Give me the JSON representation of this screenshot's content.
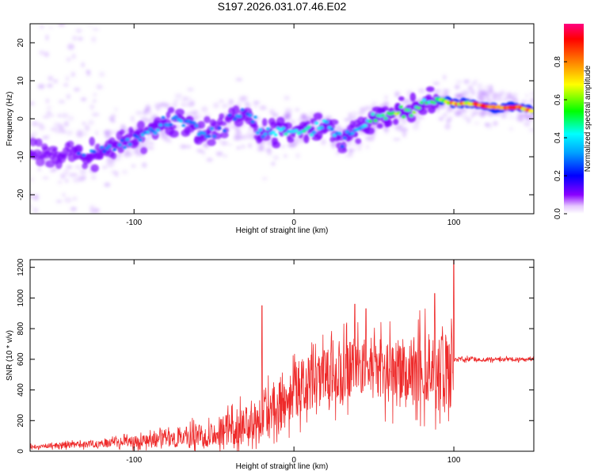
{
  "figure_title": "S197.2026.031.07.46.E02",
  "colors": {
    "snr_line": "#ee2a2a",
    "axis": "#000000",
    "background": "#ffffff"
  },
  "chart_data": [
    {
      "type": "heatmap",
      "title": "S197.2026.031.07.46.E02",
      "xlabel": "Height of straight line (km)",
      "ylabel": "Frequency (Hz)",
      "xlim": [
        -165,
        150
      ],
      "ylim": [
        -25,
        25
      ],
      "x_ticks": [
        -100,
        0,
        100
      ],
      "y_ticks": [
        -20,
        -10,
        0,
        10,
        20
      ],
      "colorscale": "rainbow",
      "colorbar": {
        "label": "Normalized spectral amplitude",
        "range": [
          0,
          1
        ],
        "ticks": [
          "0.0",
          "0.2",
          "0.4",
          "0.6",
          "0.8"
        ]
      },
      "ridge": {
        "description": "dominant-frequency track",
        "points": [
          {
            "x": -160,
            "f": -8,
            "a": 0.15
          },
          {
            "x": -150,
            "f": -10,
            "a": 0.2
          },
          {
            "x": -140,
            "f": -9,
            "a": 0.2
          },
          {
            "x": -130,
            "f": -10,
            "a": 0.3
          },
          {
            "x": -120,
            "f": -8,
            "a": 0.3
          },
          {
            "x": -110,
            "f": -7,
            "a": 0.3
          },
          {
            "x": -100,
            "f": -6,
            "a": 0.3
          },
          {
            "x": -90,
            "f": -3,
            "a": 0.35
          },
          {
            "x": -80,
            "f": -1,
            "a": 0.35
          },
          {
            "x": -70,
            "f": 0,
            "a": 0.35
          },
          {
            "x": -60,
            "f": -3,
            "a": 0.3
          },
          {
            "x": -50,
            "f": -4,
            "a": 0.3
          },
          {
            "x": -40,
            "f": 0,
            "a": 0.3
          },
          {
            "x": -30,
            "f": 2,
            "a": 0.3
          },
          {
            "x": -20,
            "f": -4,
            "a": 0.35
          },
          {
            "x": -10,
            "f": -3,
            "a": 0.45
          },
          {
            "x": 0,
            "f": -4,
            "a": 0.45
          },
          {
            "x": 10,
            "f": -3,
            "a": 0.45
          },
          {
            "x": 20,
            "f": -1,
            "a": 0.4
          },
          {
            "x": 30,
            "f": -6,
            "a": 0.35
          },
          {
            "x": 40,
            "f": -3,
            "a": 0.35
          },
          {
            "x": 50,
            "f": 0,
            "a": 0.55
          },
          {
            "x": 60,
            "f": 1,
            "a": 0.6
          },
          {
            "x": 70,
            "f": 2,
            "a": 0.6
          },
          {
            "x": 80,
            "f": 3,
            "a": 0.55
          },
          {
            "x": 90,
            "f": 5,
            "a": 0.5
          },
          {
            "x": 100,
            "f": 4,
            "a": 0.85
          },
          {
            "x": 110,
            "f": 4,
            "a": 0.8
          },
          {
            "x": 125,
            "f": 3,
            "a": 0.9
          },
          {
            "x": 140,
            "f": 3,
            "a": 0.85
          },
          {
            "x": 150,
            "f": 2,
            "a": 0.8
          }
        ]
      }
    },
    {
      "type": "line",
      "xlabel": "Height of straight line (km)",
      "ylabel": "SNR (10 * v/v)",
      "xlim": [
        -165,
        150
      ],
      "ylim": [
        0,
        1250
      ],
      "x_ticks": [
        -100,
        0,
        100
      ],
      "y_ticks": [
        0,
        200,
        400,
        600,
        800,
        1000,
        1200
      ],
      "series": [
        {
          "name": "SNR",
          "envelope": [
            {
              "x": -165,
              "base": 30,
              "amp": 20
            },
            {
              "x": -120,
              "base": 50,
              "amp": 40
            },
            {
              "x": -80,
              "base": 80,
              "amp": 80
            },
            {
              "x": -50,
              "base": 120,
              "amp": 150
            },
            {
              "x": -30,
              "base": 180,
              "amp": 200
            },
            {
              "x": -20,
              "base": 250,
              "amp": 250
            },
            {
              "x": 0,
              "base": 400,
              "amp": 300
            },
            {
              "x": 30,
              "base": 500,
              "amp": 350
            },
            {
              "x": 50,
              "base": 580,
              "amp": 280
            },
            {
              "x": 60,
              "base": 500,
              "amp": 350
            },
            {
              "x": 80,
              "base": 550,
              "amp": 400
            },
            {
              "x": 99,
              "base": 520,
              "amp": 400
            },
            {
              "x": 100,
              "base": 600,
              "amp": 25
            },
            {
              "x": 150,
              "base": 600,
              "amp": 20
            }
          ],
          "spikes": [
            {
              "x": -20,
              "y": 950
            },
            {
              "x": 38,
              "y": 960
            },
            {
              "x": 45,
              "y": 930
            },
            {
              "x": 88,
              "y": 1030
            },
            {
              "x": 100,
              "y": 1250
            }
          ]
        }
      ]
    }
  ]
}
